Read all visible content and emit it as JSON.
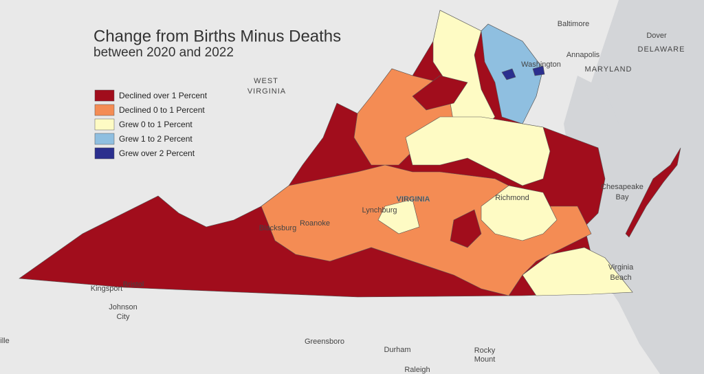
{
  "title": "Change from Births Minus Deaths",
  "subtitle": "between 2020 and 2022",
  "legend": [
    {
      "label": "Declined over 1 Percent",
      "color": "#a10d1c"
    },
    {
      "label": "Declined 0 to 1 Percent",
      "color": "#f48c54"
    },
    {
      "label": "Grew 0 to 1 Percent",
      "color": "#fefbc4"
    },
    {
      "label": "Grew 1 to 2 Percent",
      "color": "#8fbfe0"
    },
    {
      "label": "Grew over 2 Percent",
      "color": "#2b2f8e"
    }
  ],
  "places": [
    "Baltimore",
    "Dover",
    "DELAWARE",
    "Annapolis",
    "Washington",
    "MARYLAND",
    "WEST",
    "VIRGINIA",
    "VIRGINIA",
    "Richmond",
    "Chesapeake",
    "Bay",
    "Lynchburg",
    "Blacksburg",
    "Roanoke",
    "Virginia",
    "Beach",
    "Kingsport",
    "Bristol",
    "Johnson",
    "City",
    "Greensboro",
    "Durham",
    "Rocky",
    "Mount",
    "Raleigh",
    "ille"
  ]
}
